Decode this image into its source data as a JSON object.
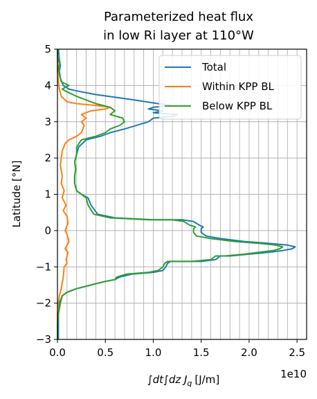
{
  "chart_data": {
    "type": "line",
    "title_lines": [
      "Parameterized heat flux",
      "in low Ri layer at 110°W"
    ],
    "xlabel": "∫dt∫dz J",
    "xlabel_sub": "q",
    "xlabel_unit": "[J/m]",
    "ylabel": "Latitude [°N]",
    "x_offset_label": "1e10",
    "xlim": [
      0,
      2.6
    ],
    "ylim": [
      -3,
      5
    ],
    "xticks": [
      0.0,
      0.5,
      1.0,
      1.5,
      2.0,
      2.5
    ],
    "xtick_labels": [
      "0.0",
      "0.5",
      "1.0",
      "1.5",
      "2.0",
      "2.5"
    ],
    "yticks": [
      -3,
      -2,
      -1,
      0,
      1,
      2,
      3,
      4,
      5
    ],
    "ytick_labels": [
      "−3",
      "−2",
      "−1",
      "0",
      "1",
      "2",
      "3",
      "4",
      "5"
    ],
    "grid": true,
    "x_minor_grid_step": 0.1,
    "legend_position": "top-right",
    "series": [
      {
        "name": "Total",
        "color": "#1f77b4",
        "points": [
          [
            0.01,
            -3.0
          ],
          [
            0.01,
            -2.5
          ],
          [
            0.01,
            -2.2
          ],
          [
            0.02,
            -2.0
          ],
          [
            0.05,
            -1.8
          ],
          [
            0.1,
            -1.7
          ],
          [
            0.2,
            -1.6
          ],
          [
            0.35,
            -1.5
          ],
          [
            0.5,
            -1.4
          ],
          [
            0.6,
            -1.35
          ],
          [
            0.65,
            -1.28
          ],
          [
            0.78,
            -1.2
          ],
          [
            1.0,
            -1.15
          ],
          [
            1.1,
            -1.1
          ],
          [
            1.13,
            -1.0
          ],
          [
            1.15,
            -0.9
          ],
          [
            1.18,
            -0.85
          ],
          [
            1.5,
            -0.85
          ],
          [
            1.65,
            -0.8
          ],
          [
            1.7,
            -0.7
          ],
          [
            1.8,
            -0.7
          ],
          [
            2.0,
            -0.65
          ],
          [
            2.2,
            -0.6
          ],
          [
            2.35,
            -0.55
          ],
          [
            2.45,
            -0.5
          ],
          [
            2.48,
            -0.45
          ],
          [
            2.4,
            -0.4
          ],
          [
            2.2,
            -0.35
          ],
          [
            1.95,
            -0.3
          ],
          [
            1.7,
            -0.22
          ],
          [
            1.55,
            -0.15
          ],
          [
            1.5,
            -0.05
          ],
          [
            1.5,
            0.05
          ],
          [
            1.52,
            0.1
          ],
          [
            1.48,
            0.15
          ],
          [
            1.45,
            0.2
          ],
          [
            1.42,
            0.25
          ],
          [
            1.3,
            0.3
          ],
          [
            1.0,
            0.3
          ],
          [
            0.6,
            0.35
          ],
          [
            0.42,
            0.45
          ],
          [
            0.35,
            0.7
          ],
          [
            0.32,
            0.9
          ],
          [
            0.25,
            1.0
          ],
          [
            0.2,
            1.1
          ],
          [
            0.18,
            1.3
          ],
          [
            0.18,
            1.5
          ],
          [
            0.19,
            1.7
          ],
          [
            0.18,
            1.9
          ],
          [
            0.2,
            2.1
          ],
          [
            0.22,
            2.3
          ],
          [
            0.3,
            2.5
          ],
          [
            0.45,
            2.6
          ],
          [
            0.55,
            2.7
          ],
          [
            0.7,
            2.8
          ],
          [
            0.95,
            3.0
          ],
          [
            1.0,
            3.1
          ],
          [
            1.2,
            3.15
          ],
          [
            1.25,
            3.2
          ],
          [
            1.0,
            3.25
          ],
          [
            1.1,
            3.3
          ],
          [
            0.95,
            3.35
          ],
          [
            1.0,
            3.4
          ],
          [
            1.2,
            3.45
          ],
          [
            1.05,
            3.5
          ],
          [
            0.8,
            3.6
          ],
          [
            0.4,
            3.75
          ],
          [
            0.2,
            3.85
          ],
          [
            0.12,
            3.9
          ],
          [
            0.06,
            4.0
          ],
          [
            0.03,
            4.2
          ],
          [
            0.02,
            4.4
          ],
          [
            0.03,
            4.55
          ],
          [
            0.02,
            4.7
          ],
          [
            0.01,
            5.0
          ]
        ]
      },
      {
        "name": "Within KPP BL",
        "color": "#ff7f0e",
        "points": [
          [
            0.0,
            -3.0
          ],
          [
            0.0,
            -2.6
          ],
          [
            0.0,
            -2.3
          ],
          [
            0.01,
            -2.0
          ],
          [
            0.02,
            -1.8
          ],
          [
            0.04,
            -1.6
          ],
          [
            0.06,
            -1.3
          ],
          [
            0.07,
            -1.0
          ],
          [
            0.1,
            -0.9
          ],
          [
            0.09,
            -0.8
          ],
          [
            0.11,
            -0.6
          ],
          [
            0.08,
            -0.5
          ],
          [
            0.12,
            -0.3
          ],
          [
            0.1,
            -0.1
          ],
          [
            0.08,
            0.0
          ],
          [
            0.11,
            0.2
          ],
          [
            0.1,
            0.4
          ],
          [
            0.06,
            0.55
          ],
          [
            0.09,
            0.7
          ],
          [
            0.05,
            0.9
          ],
          [
            0.07,
            1.1
          ],
          [
            0.04,
            1.3
          ],
          [
            0.05,
            1.5
          ],
          [
            0.03,
            1.8
          ],
          [
            0.04,
            2.0
          ],
          [
            0.05,
            2.2
          ],
          [
            0.08,
            2.4
          ],
          [
            0.12,
            2.5
          ],
          [
            0.2,
            2.6
          ],
          [
            0.25,
            2.7
          ],
          [
            0.28,
            2.9
          ],
          [
            0.25,
            3.0
          ],
          [
            0.3,
            3.1
          ],
          [
            0.25,
            3.2
          ],
          [
            0.35,
            3.3
          ],
          [
            0.5,
            3.35
          ],
          [
            0.55,
            3.4
          ],
          [
            0.4,
            3.45
          ],
          [
            0.2,
            3.5
          ],
          [
            0.1,
            3.55
          ],
          [
            0.04,
            3.7
          ],
          [
            0.02,
            3.9
          ],
          [
            0.01,
            4.1
          ],
          [
            0.0,
            4.4
          ],
          [
            0.0,
            5.0
          ]
        ]
      },
      {
        "name": "Below KPP BL",
        "color": "#2ca02c",
        "points": [
          [
            0.0,
            -3.0
          ],
          [
            0.0,
            -2.6
          ],
          [
            0.01,
            -2.3
          ],
          [
            0.03,
            -2.0
          ],
          [
            0.05,
            -1.8
          ],
          [
            0.1,
            -1.7
          ],
          [
            0.2,
            -1.6
          ],
          [
            0.35,
            -1.5
          ],
          [
            0.5,
            -1.4
          ],
          [
            0.6,
            -1.35
          ],
          [
            0.62,
            -1.28
          ],
          [
            0.72,
            -1.2
          ],
          [
            0.95,
            -1.15
          ],
          [
            1.05,
            -1.1
          ],
          [
            1.1,
            -1.0
          ],
          [
            1.12,
            -0.9
          ],
          [
            1.15,
            -0.85
          ],
          [
            1.4,
            -0.85
          ],
          [
            1.6,
            -0.8
          ],
          [
            1.65,
            -0.7
          ],
          [
            1.75,
            -0.7
          ],
          [
            1.95,
            -0.65
          ],
          [
            2.1,
            -0.6
          ],
          [
            2.25,
            -0.55
          ],
          [
            2.32,
            -0.5
          ],
          [
            2.35,
            -0.45
          ],
          [
            2.28,
            -0.4
          ],
          [
            2.1,
            -0.35
          ],
          [
            1.85,
            -0.3
          ],
          [
            1.6,
            -0.22
          ],
          [
            1.45,
            -0.15
          ],
          [
            1.42,
            -0.05
          ],
          [
            1.42,
            0.05
          ],
          [
            1.44,
            0.1
          ],
          [
            1.38,
            0.15
          ],
          [
            1.35,
            0.2
          ],
          [
            1.32,
            0.25
          ],
          [
            1.2,
            0.3
          ],
          [
            0.95,
            0.3
          ],
          [
            0.55,
            0.35
          ],
          [
            0.38,
            0.45
          ],
          [
            0.32,
            0.7
          ],
          [
            0.3,
            0.9
          ],
          [
            0.25,
            1.0
          ],
          [
            0.2,
            1.1
          ],
          [
            0.18,
            1.3
          ],
          [
            0.18,
            1.5
          ],
          [
            0.19,
            1.7
          ],
          [
            0.18,
            1.9
          ],
          [
            0.2,
            2.1
          ],
          [
            0.2,
            2.3
          ],
          [
            0.25,
            2.5
          ],
          [
            0.4,
            2.6
          ],
          [
            0.5,
            2.7
          ],
          [
            0.55,
            2.8
          ],
          [
            0.65,
            2.9
          ],
          [
            0.7,
            3.0
          ],
          [
            0.68,
            3.1
          ],
          [
            0.55,
            3.2
          ],
          [
            0.6,
            3.3
          ],
          [
            0.55,
            3.4
          ],
          [
            0.4,
            3.5
          ],
          [
            0.2,
            3.7
          ],
          [
            0.08,
            3.85
          ],
          [
            0.05,
            3.9
          ],
          [
            0.12,
            4.0
          ],
          [
            0.04,
            4.1
          ],
          [
            0.02,
            4.3
          ],
          [
            0.01,
            4.5
          ],
          [
            0.02,
            4.6
          ],
          [
            0.0,
            4.8
          ],
          [
            0.0,
            5.0
          ]
        ]
      }
    ]
  }
}
